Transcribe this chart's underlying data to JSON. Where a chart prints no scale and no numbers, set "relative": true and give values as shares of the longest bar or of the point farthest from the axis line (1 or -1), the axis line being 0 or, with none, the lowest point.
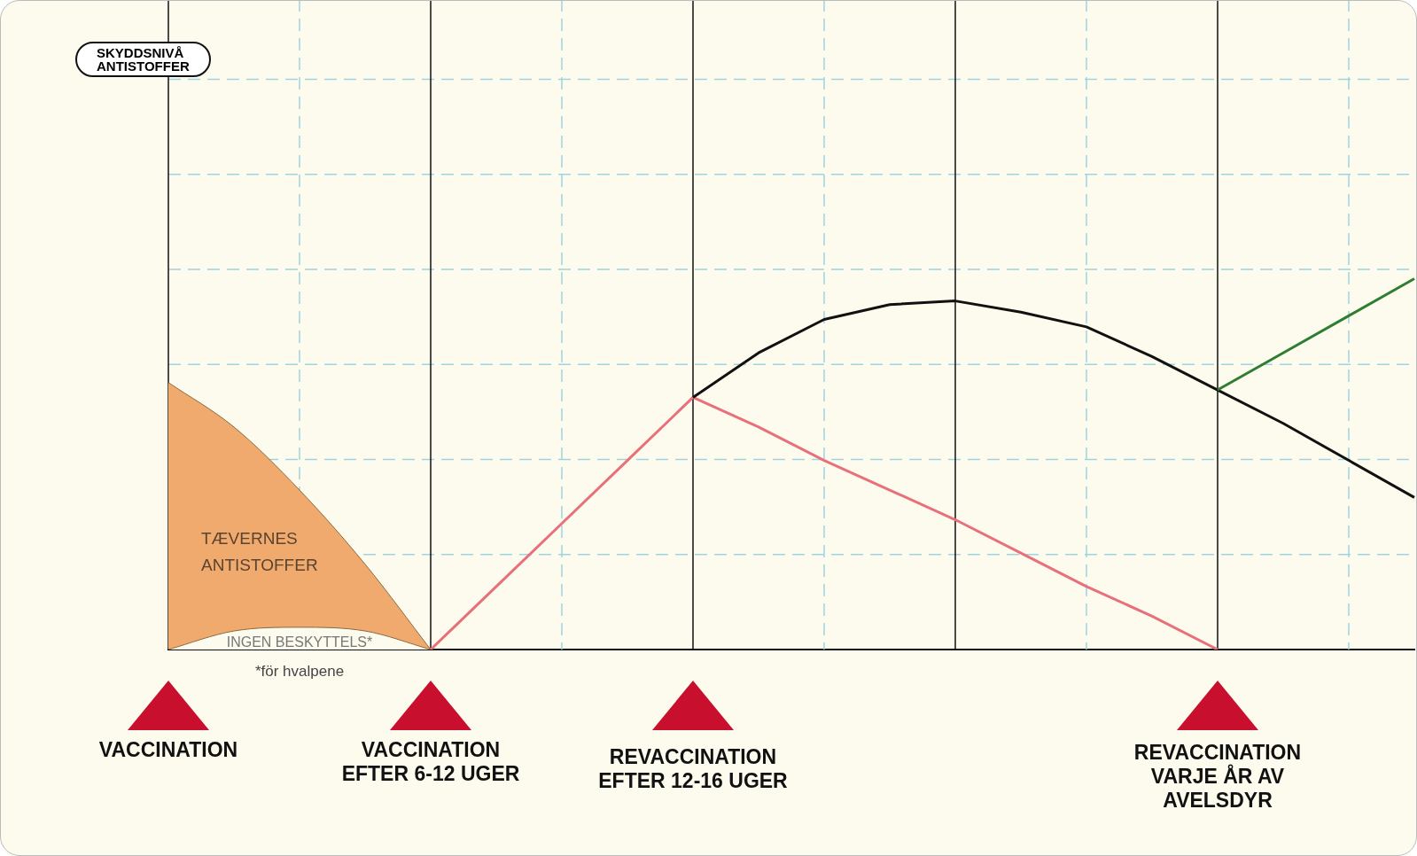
{
  "chart_data": {
    "type": "line",
    "relative": true,
    "categories": [
      null,
      null,
      null,
      null,
      null,
      null,
      null,
      null,
      null,
      null,
      null,
      null,
      null,
      null,
      null,
      null,
      null,
      null,
      null,
      null
    ],
    "series": [
      {
        "type": "area",
        "color": "#f0aa6e",
        "values": [
          0.72,
          0.6,
          0.43,
          0.23,
          0,
          null,
          null,
          null,
          null,
          null,
          null,
          null,
          null,
          null,
          null,
          null,
          null,
          null,
          null,
          null
        ]
      },
      {
        "type": "area",
        "color": "#fdfbee",
        "values": [
          0,
          0.05,
          0.06,
          0.05,
          0,
          null,
          null,
          null,
          null,
          null,
          null,
          null,
          null,
          null,
          null,
          null,
          null,
          null,
          null,
          null
        ]
      },
      {
        "type": "line",
        "color": "#e8707a",
        "values": [
          null,
          null,
          null,
          null,
          0,
          0.17,
          0.34,
          0.51,
          0.68,
          0.6,
          0.51,
          0.43,
          0.35,
          0.26,
          0.17,
          0.09,
          0,
          null,
          null,
          null
        ]
      },
      {
        "type": "line",
        "color": "#111111",
        "values": [
          null,
          null,
          null,
          null,
          null,
          null,
          null,
          null,
          0.68,
          0.8,
          0.89,
          0.93,
          0.94,
          0.91,
          0.87,
          0.79,
          0.7,
          0.61,
          0.51,
          0.41
        ]
      },
      {
        "type": "line",
        "color": "#2e7d32",
        "values": [
          null,
          null,
          null,
          null,
          null,
          null,
          null,
          null,
          null,
          null,
          null,
          null,
          null,
          null,
          null,
          null,
          0.7,
          0.8,
          0.9,
          1
        ]
      }
    ],
    "annotations": [
      "SKYDDSNIVÅ\nANTISTOFFER",
      "TÆVERNES\nANTISTOFFER",
      "INGEN BESKYTTELS*",
      "*för hvalpene",
      "VACCINATION",
      "VACCINATION\nEFTER 6-12 UGER",
      "REVACCINATION\nEFTER 12-16 UGER",
      "REVACCINATION\nVARJE ÅR AV\nAVELSDYR"
    ],
    "grid": true,
    "legend": false,
    "tick_labels": false,
    "marker": "none",
    "line_style": "solid"
  }
}
